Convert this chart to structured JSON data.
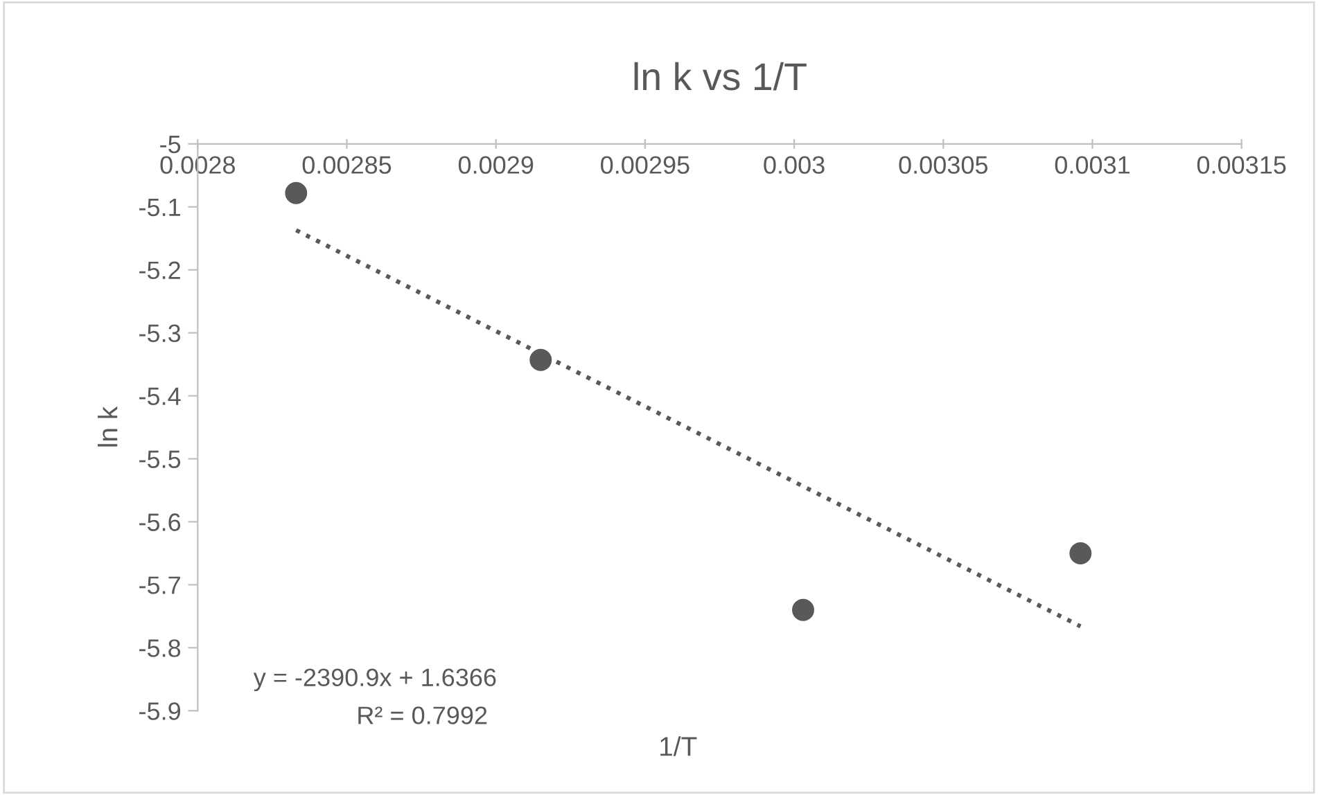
{
  "chart_data": {
    "type": "scatter",
    "title": "ln k vs 1/T",
    "xlabel": "1/T",
    "ylabel": "ln k",
    "series": [
      {
        "color": "#595959",
        "marker": "circle",
        "x": [
          0.002833,
          0.002915,
          0.003003,
          0.003096
        ],
        "values": [
          -5.078,
          -5.343,
          -5.74,
          -5.65
        ]
      },
      {
        "type": "line",
        "color": "#595959",
        "line_style": "dotted",
        "marker": "none",
        "x": [
          0.002833,
          0.003096
        ],
        "values": [
          -5.137,
          -5.766
        ]
      }
    ],
    "xlim": [
      0.0028,
      0.00315
    ],
    "xticks": [
      0.0028,
      0.00285,
      0.0029,
      0.00295,
      0.003,
      0.00305,
      0.0031,
      0.00315
    ],
    "ylim": [
      -5.9,
      -5
    ],
    "yticks": [
      -5,
      -5.1,
      -5.2,
      -5.3,
      -5.4,
      -5.5,
      -5.6,
      -5.7,
      -5.8,
      -5.9
    ],
    "grid": false,
    "legend": false,
    "annotations": [
      "y = -2390.9x + 1.6366",
      "R² = 0.7992"
    ]
  }
}
